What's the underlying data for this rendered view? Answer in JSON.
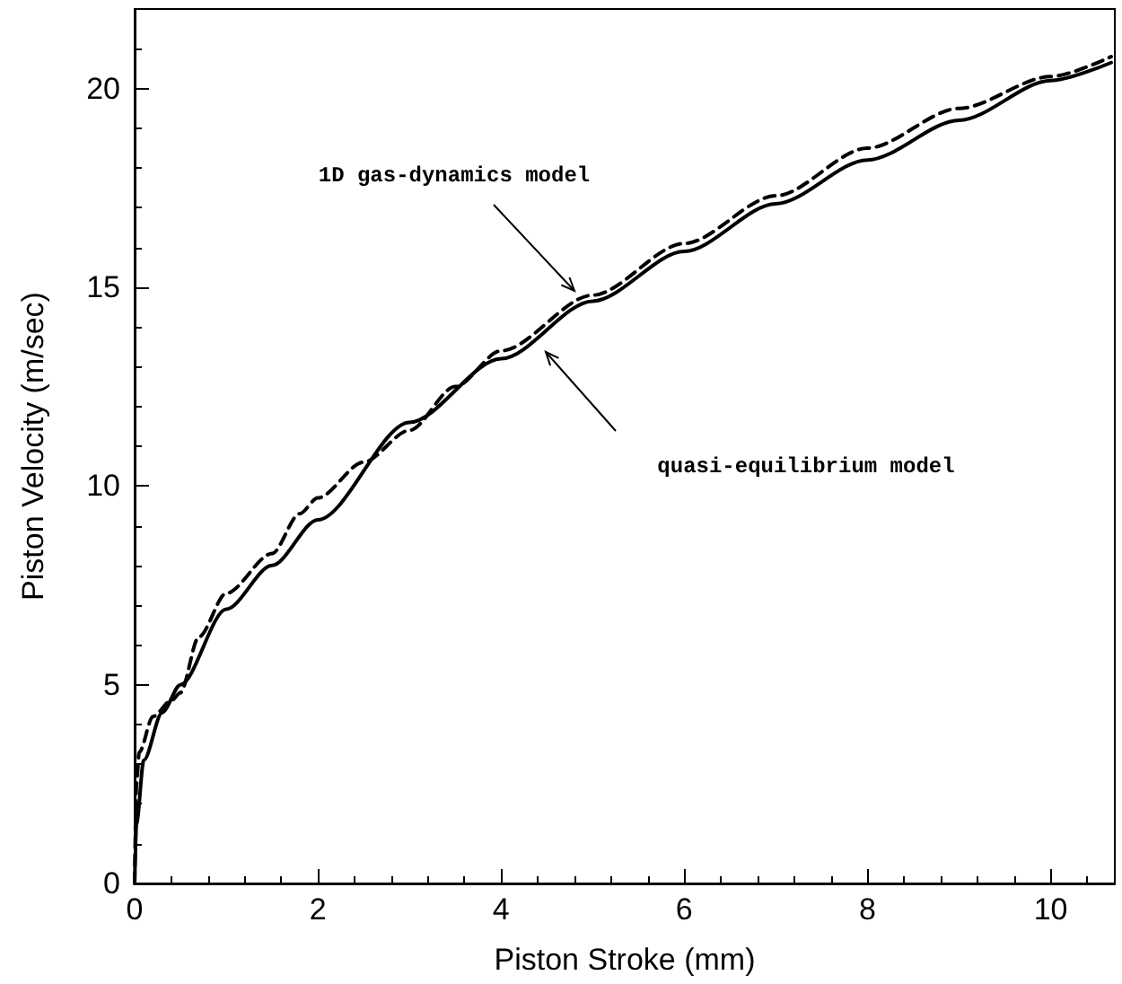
{
  "chart_data": {
    "type": "line",
    "xlabel": "Piston Stroke (mm)",
    "ylabel": "Piston Velocity (m/sec)",
    "xlim": [
      0,
      10.7
    ],
    "xticks": [
      0,
      2,
      4,
      6,
      8,
      10
    ],
    "ylim": [
      0,
      22
    ],
    "yticks": [
      0,
      5,
      10,
      15,
      20
    ],
    "grid": false,
    "marker": "none",
    "series": [
      {
        "color": "#000000",
        "line_style": "solid",
        "x": [
          0,
          0.02,
          0.1,
          0.3,
          0.5,
          1,
          1.5,
          2,
          3,
          4,
          5,
          6,
          7,
          8,
          9,
          10,
          10.66
        ],
        "values": [
          0,
          1.5,
          3.1,
          4.3,
          5.0,
          6.9,
          8.0,
          9.15,
          11.6,
          13.2,
          14.65,
          15.9,
          17.1,
          18.2,
          19.2,
          20.2,
          20.65
        ]
      },
      {
        "color": "#000000",
        "line_style": "dashed",
        "x": [
          0,
          0.02,
          0.05,
          0.2,
          0.4,
          0.5,
          0.7,
          1,
          1.5,
          1.8,
          2,
          2.5,
          3,
          3.5,
          4,
          5,
          6,
          7,
          8,
          9,
          10,
          10.66
        ],
        "values": [
          0,
          2.5,
          3.3,
          4.2,
          4.6,
          4.8,
          6.2,
          7.3,
          8.3,
          9.3,
          9.7,
          10.6,
          11.4,
          12.5,
          13.4,
          14.8,
          16.1,
          17.3,
          18.5,
          19.5,
          20.3,
          20.8
        ]
      }
    ],
    "annotations": [
      "1D gas-dynamics model",
      "quasi-equilibrium model"
    ]
  }
}
